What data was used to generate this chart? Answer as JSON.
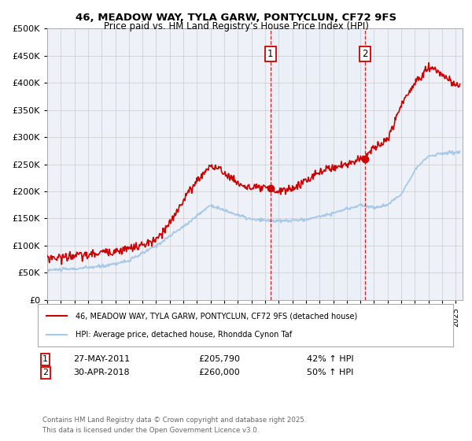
{
  "title": "46, MEADOW WAY, TYLA GARW, PONTYCLUN, CF72 9FS",
  "subtitle": "Price paid vs. HM Land Registry's House Price Index (HPI)",
  "legend_line1": "46, MEADOW WAY, TYLA GARW, PONTYCLUN, CF72 9FS (detached house)",
  "legend_line2": "HPI: Average price, detached house, Rhondda Cynon Taf",
  "transaction1_date": "27-MAY-2011",
  "transaction1_price": "£205,790",
  "transaction1_hpi": "42% ↑ HPI",
  "transaction1_year": 2011.4,
  "transaction1_value": 205790,
  "transaction2_date": "30-APR-2018",
  "transaction2_price": "£260,000",
  "transaction2_hpi": "50% ↑ HPI",
  "transaction2_year": 2018.33,
  "transaction2_value": 260000,
  "footer": "Contains HM Land Registry data © Crown copyright and database right 2025.\nThis data is licensed under the Open Government Licence v3.0.",
  "ylim": [
    0,
    500000
  ],
  "xlim_start": 1995,
  "xlim_end": 2025,
  "hpi_color": "#a8c8e8",
  "price_color": "#cc0000",
  "vline_color": "#cc0000",
  "background_color": "#eef2f8",
  "grid_color": "#cccccc",
  "transaction_box_color": "#cc0000",
  "hpi_key_t": [
    1995,
    1997,
    1999,
    2001,
    2003,
    2005,
    2007,
    2008,
    2010,
    2012,
    2014,
    2016,
    2018,
    2019,
    2020,
    2021,
    2022,
    2023,
    2024,
    2025
  ],
  "hpi_key_v": [
    55000,
    57000,
    62000,
    72000,
    100000,
    135000,
    175000,
    165000,
    148000,
    145000,
    148000,
    160000,
    175000,
    170000,
    175000,
    195000,
    240000,
    265000,
    270000,
    272000
  ],
  "price_key_t": [
    1995,
    1996,
    1997,
    1998,
    1999,
    2000,
    2001,
    2002,
    2003,
    2004,
    2005,
    2006,
    2007,
    2008,
    2009,
    2010,
    2011,
    2012,
    2013,
    2014,
    2015,
    2016,
    2017,
    2018,
    2019,
    2020,
    2021,
    2022,
    2023,
    2024,
    2025
  ],
  "price_key_v": [
    78000,
    78000,
    82000,
    82000,
    88000,
    90000,
    95000,
    100000,
    110000,
    140000,
    185000,
    220000,
    248000,
    235000,
    215000,
    205000,
    205790,
    200000,
    205000,
    220000,
    235000,
    245000,
    250000,
    260000,
    280000,
    295000,
    360000,
    400000,
    430000,
    415000,
    395000
  ]
}
